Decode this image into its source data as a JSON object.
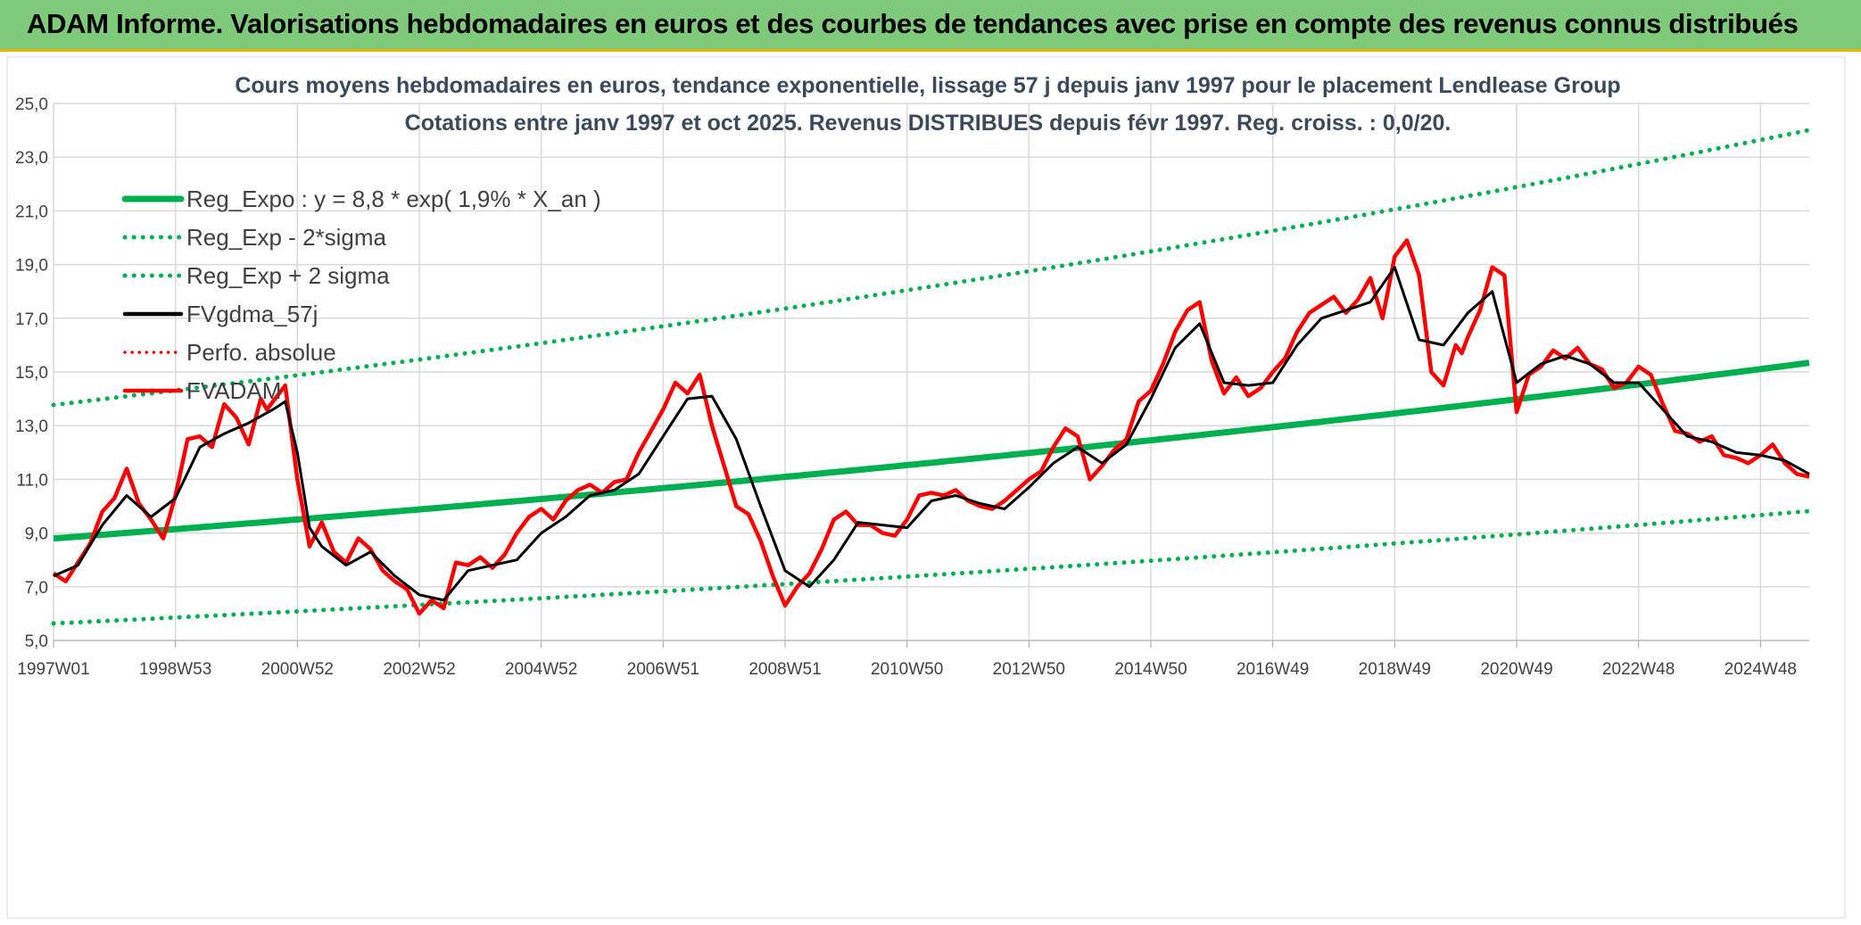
{
  "header": {
    "title": "ADAM Informe. Valorisations hebdomadaires en euros et des courbes de tendances avec prise en compte des revenus connus distribués"
  },
  "colors": {
    "banner": "#7fc97a",
    "banner_border": "#e6b800",
    "grid": "#d9d9d9",
    "reg": "#00b050",
    "gdma": "#000000",
    "adam": "#ff0000",
    "perfo": "#ff0000"
  },
  "chart_data": {
    "type": "line",
    "title": "Cours moyens hebdomadaires en euros, tendance exponentielle, lissage 57 j depuis janv 1997 pour le placement Lendlease Group",
    "subtitle": "Cotations entre janv 1997 et oct 2025. Revenus DISTRIBUES depuis févr 1997. Reg. croiss. : 0,0/20.",
    "xlabel": "",
    "ylabel": "",
    "ylim": [
      5,
      25
    ],
    "xlim_years": [
      0,
      28.8
    ],
    "grid": true,
    "legend_position": "top-left",
    "y_ticks": [
      "5,0",
      "7,0",
      "9,0",
      "11,0",
      "13,0",
      "15,0",
      "17,0",
      "19,0",
      "21,0",
      "23,0",
      "25,0"
    ],
    "x_ticks": [
      {
        "label": "1997W01",
        "t": 0
      },
      {
        "label": "1998W53",
        "t": 2
      },
      {
        "label": "2000W52",
        "t": 4
      },
      {
        "label": "2002W52",
        "t": 6
      },
      {
        "label": "2004W52",
        "t": 8
      },
      {
        "label": "2006W51",
        "t": 10
      },
      {
        "label": "2008W51",
        "t": 12
      },
      {
        "label": "2010W50",
        "t": 14
      },
      {
        "label": "2012W50",
        "t": 16
      },
      {
        "label": "2014W50",
        "t": 18
      },
      {
        "label": "2016W49",
        "t": 20
      },
      {
        "label": "2018W49",
        "t": 22
      },
      {
        "label": "2020W49",
        "t": 24
      },
      {
        "label": "2022W48",
        "t": 26
      },
      {
        "label": "2024W48",
        "t": 28
      }
    ],
    "regression": {
      "a": 8.8,
      "rate": 0.0193,
      "low_factor": 0.64,
      "high_factor": 1.565
    },
    "legend": [
      {
        "label": "Reg_Expo : y = 8,8 * exp( 1,9% *  X_an )",
        "style": "solid-thick",
        "color": "#00b050"
      },
      {
        "label": "Reg_Exp - 2*sigma",
        "style": "dotted",
        "color": "#00b050"
      },
      {
        "label": "Reg_Exp + 2 sigma",
        "style": "dotted",
        "color": "#00b050"
      },
      {
        "label": "FVgdma_57j",
        "style": "solid",
        "color": "#000000"
      },
      {
        "label": "Perfo. absolue",
        "style": "dotted-thin",
        "color": "#ff0000"
      },
      {
        "label": "FVADAM",
        "style": "solid",
        "color": "#ff0000"
      }
    ],
    "series": [
      {
        "name": "FVADAM",
        "x_years": [
          0,
          0.2,
          0.4,
          0.6,
          0.8,
          1.0,
          1.2,
          1.4,
          1.6,
          1.8,
          2.0,
          2.2,
          2.4,
          2.6,
          2.8,
          3.0,
          3.2,
          3.4,
          3.5,
          3.6,
          3.8,
          4.0,
          4.2,
          4.4,
          4.6,
          4.8,
          5.0,
          5.2,
          5.4,
          5.6,
          5.8,
          6.0,
          6.2,
          6.4,
          6.6,
          6.8,
          7.0,
          7.2,
          7.4,
          7.6,
          7.8,
          8.0,
          8.2,
          8.4,
          8.6,
          8.8,
          9.0,
          9.2,
          9.4,
          9.6,
          9.8,
          10.0,
          10.2,
          10.4,
          10.6,
          10.8,
          11.0,
          11.2,
          11.4,
          11.6,
          11.8,
          12.0,
          12.2,
          12.4,
          12.6,
          12.8,
          13.0,
          13.2,
          13.4,
          13.6,
          13.8,
          14.0,
          14.2,
          14.4,
          14.6,
          14.8,
          15.0,
          15.2,
          15.4,
          15.6,
          15.8,
          16.0,
          16.2,
          16.4,
          16.6,
          16.8,
          17.0,
          17.2,
          17.4,
          17.6,
          17.8,
          18.0,
          18.2,
          18.4,
          18.6,
          18.8,
          19.0,
          19.2,
          19.4,
          19.6,
          19.8,
          20.0,
          20.2,
          20.4,
          20.6,
          20.8,
          21.0,
          21.2,
          21.4,
          21.6,
          21.8,
          22.0,
          22.2,
          22.4,
          22.6,
          22.8,
          23.0,
          23.1,
          23.2,
          23.4,
          23.6,
          23.8,
          24.0,
          24.2,
          24.4,
          24.6,
          24.8,
          25.0,
          25.2,
          25.4,
          25.6,
          25.8,
          26.0,
          26.2,
          26.4,
          26.6,
          26.8,
          27.0,
          27.2,
          27.4,
          27.6,
          27.8,
          28.0,
          28.2,
          28.4,
          28.6,
          28.8
        ],
        "values": [
          7.5,
          7.2,
          7.9,
          8.6,
          9.8,
          10.3,
          11.4,
          10.1,
          9.5,
          8.8,
          10.4,
          12.5,
          12.6,
          12.2,
          13.8,
          13.3,
          12.3,
          14.0,
          13.6,
          13.9,
          14.5,
          11.0,
          8.5,
          9.4,
          8.3,
          7.9,
          8.8,
          8.4,
          7.6,
          7.2,
          6.9,
          6.0,
          6.5,
          6.2,
          7.9,
          7.8,
          8.1,
          7.7,
          8.2,
          9.0,
          9.6,
          9.9,
          9.5,
          10.2,
          10.6,
          10.8,
          10.5,
          10.9,
          11.0,
          12.0,
          12.8,
          13.6,
          14.6,
          14.2,
          14.9,
          13.0,
          11.5,
          10.0,
          9.7,
          8.7,
          7.4,
          6.3,
          7.0,
          7.5,
          8.4,
          9.5,
          9.8,
          9.3,
          9.3,
          9.0,
          8.9,
          9.5,
          10.4,
          10.5,
          10.4,
          10.6,
          10.2,
          10.0,
          9.9,
          10.2,
          10.6,
          11.0,
          11.3,
          12.2,
          12.9,
          12.6,
          11.0,
          11.5,
          12.1,
          12.5,
          13.9,
          14.3,
          15.3,
          16.5,
          17.3,
          17.6,
          15.4,
          14.2,
          14.8,
          14.1,
          14.4,
          15.0,
          15.5,
          16.5,
          17.2,
          17.5,
          17.8,
          17.2,
          17.7,
          18.5,
          17.0,
          19.3,
          19.9,
          18.6,
          15.0,
          14.5,
          16.0,
          15.7,
          16.3,
          17.3,
          18.9,
          18.6,
          13.5,
          14.9,
          15.2,
          15.8,
          15.5,
          15.9,
          15.3,
          15.1,
          14.4,
          14.6,
          15.2,
          14.9,
          13.8,
          12.8,
          12.7,
          12.4,
          12.6,
          11.9,
          11.8,
          11.6,
          11.9,
          12.3,
          11.6,
          11.2,
          11.1
        ]
      },
      {
        "name": "FVgdma_57j",
        "x_years": [
          0,
          0.4,
          0.8,
          1.2,
          1.6,
          2.0,
          2.4,
          2.8,
          3.2,
          3.6,
          3.8,
          4.0,
          4.2,
          4.4,
          4.8,
          5.2,
          5.6,
          6.0,
          6.4,
          6.8,
          7.2,
          7.6,
          8.0,
          8.4,
          8.8,
          9.2,
          9.6,
          10.0,
          10.4,
          10.8,
          11.2,
          11.6,
          12.0,
          12.4,
          12.8,
          13.2,
          13.6,
          14.0,
          14.4,
          14.8,
          15.2,
          15.6,
          16.0,
          16.4,
          16.8,
          17.2,
          17.6,
          18.0,
          18.4,
          18.8,
          19.2,
          19.6,
          20.0,
          20.4,
          20.8,
          21.2,
          21.6,
          22.0,
          22.4,
          22.8,
          23.2,
          23.6,
          24.0,
          24.4,
          24.8,
          25.2,
          25.6,
          26.0,
          26.4,
          26.8,
          27.2,
          27.6,
          28.0,
          28.4,
          28.8
        ],
        "values": [
          7.4,
          7.8,
          9.3,
          10.4,
          9.6,
          10.3,
          12.2,
          12.7,
          13.1,
          13.6,
          13.9,
          12.0,
          9.2,
          8.5,
          7.8,
          8.3,
          7.4,
          6.7,
          6.5,
          7.6,
          7.8,
          8.0,
          9.0,
          9.6,
          10.4,
          10.6,
          11.2,
          12.6,
          14.0,
          14.1,
          12.5,
          10.0,
          7.6,
          7.0,
          8.0,
          9.4,
          9.3,
          9.2,
          10.2,
          10.4,
          10.1,
          9.9,
          10.7,
          11.6,
          12.2,
          11.6,
          12.3,
          14.0,
          15.9,
          16.8,
          14.6,
          14.5,
          14.6,
          16.0,
          17.0,
          17.3,
          17.6,
          18.9,
          16.2,
          16.0,
          17.2,
          18.0,
          14.6,
          15.3,
          15.6,
          15.3,
          14.6,
          14.6,
          13.6,
          12.6,
          12.4,
          12.0,
          11.9,
          11.7,
          11.2
        ]
      }
    ]
  }
}
